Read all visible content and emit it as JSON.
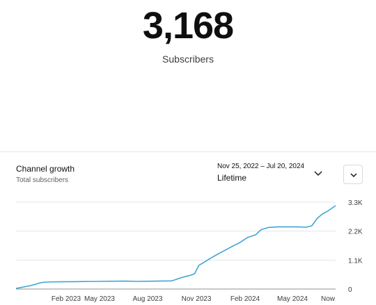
{
  "summary": {
    "subscriber_count": "3,168",
    "subscriber_label": "Subscribers"
  },
  "card": {
    "title": "Channel growth",
    "subtitle": "Total subscribers",
    "date_range": "Nov 25, 2022 – Jul 20, 2024",
    "range_label": "Lifetime"
  },
  "icons": {
    "range_chevron": "chevron-down-icon",
    "menu_button": "chevron-down-icon"
  },
  "chart_data": {
    "type": "line",
    "title": "",
    "xlabel": "",
    "ylabel": "",
    "x_ticks": [
      "Feb 2023",
      "May 2023",
      "Aug 2023",
      "Nov 2023",
      "Feb 2024",
      "May 2024",
      "Now"
    ],
    "y_ticks": [
      "0",
      "1.1K",
      "2.2K",
      "3.3K"
    ],
    "ylim": [
      0,
      3300
    ],
    "xlim": [
      "2022-11-25",
      "2024-07-20"
    ],
    "grid": true,
    "line_color": "#3ea6d6",
    "series": [
      {
        "x": [
          "2022-11-25",
          "2022-12-05",
          "2022-12-20",
          "2023-01-01",
          "2023-01-10",
          "2023-01-20",
          "2023-02-15",
          "2023-03-15",
          "2023-04-01",
          "2023-05-01",
          "2023-05-20",
          "2023-06-20",
          "2023-07-10",
          "2023-08-01",
          "2023-08-20",
          "2023-09-15",
          "2023-10-01",
          "2023-10-10",
          "2023-10-20",
          "2023-10-28",
          "2023-11-05",
          "2023-11-15",
          "2023-11-28",
          "2023-12-10",
          "2023-12-25",
          "2024-01-05",
          "2024-01-20",
          "2024-02-05",
          "2024-02-20",
          "2024-03-01",
          "2024-03-15",
          "2024-04-01",
          "2024-04-20",
          "2024-05-10",
          "2024-05-25",
          "2024-06-05",
          "2024-06-15",
          "2024-06-25",
          "2024-07-05",
          "2024-07-20"
        ],
        "y": [
          20,
          60,
          120,
          180,
          240,
          265,
          275,
          280,
          285,
          290,
          295,
          300,
          290,
          295,
          300,
          310,
          420,
          470,
          520,
          580,
          900,
          1020,
          1180,
          1320,
          1480,
          1600,
          1750,
          1960,
          2060,
          2250,
          2340,
          2360,
          2360,
          2360,
          2350,
          2400,
          2680,
          2850,
          2960,
          3168
        ]
      }
    ]
  }
}
